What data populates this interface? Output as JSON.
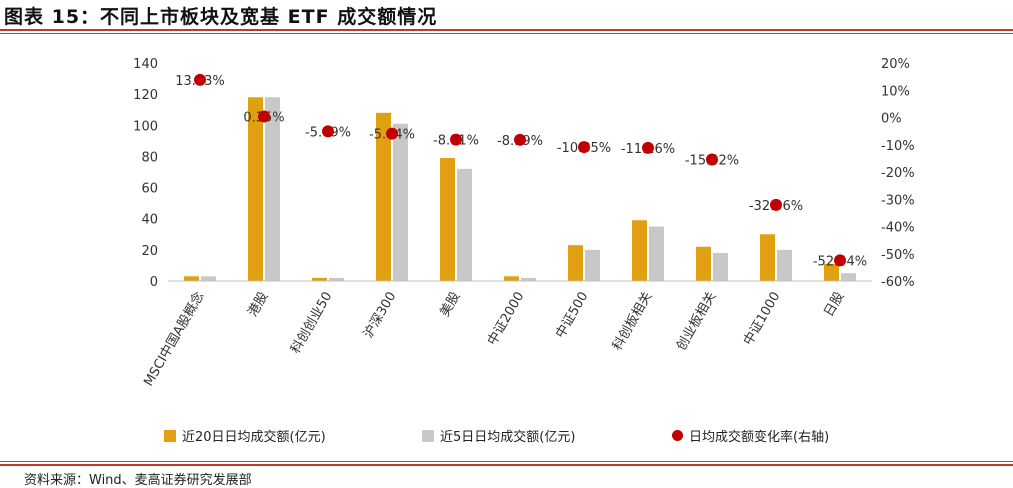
{
  "header": {
    "title": "图表 15：不同上市板块及宽基 ETF 成交额情况"
  },
  "footer": {
    "source": "资料来源：Wind、麦高证券研究发展部"
  },
  "colors": {
    "bar20": "#E0A010",
    "bar5": "#C8C8C8",
    "dot": "#C00000",
    "rule": "#C0392B"
  },
  "legend": {
    "bar20": "近20日日均成交额(亿元)",
    "bar5": "近5日日均成交额(亿元)",
    "rate": "日均成交额变化率(右轴)"
  },
  "chart_data": {
    "type": "bar",
    "categories": [
      "MSCI中国A股概念",
      "港股",
      "科创创业50",
      "沪深300",
      "美股",
      "中证2000",
      "中证500",
      "科创板相关",
      "创业板相关",
      "中证1000",
      "日股"
    ],
    "series": [
      {
        "name": "近20日日均成交额(亿元)",
        "type": "bar",
        "axis": "left",
        "values": [
          3,
          118,
          2,
          108,
          79,
          3,
          23,
          39,
          22,
          30,
          11
        ]
      },
      {
        "name": "近5日日均成交额(亿元)",
        "type": "bar",
        "axis": "left",
        "values": [
          3,
          118,
          2,
          101,
          72,
          2,
          20,
          35,
          18,
          20,
          5
        ]
      },
      {
        "name": "日均成交额变化率(右轴)",
        "type": "scatter",
        "axis": "right",
        "values": [
          13.83,
          0.35,
          -5.09,
          -5.94,
          -8.11,
          -8.19,
          -10.85,
          -11.16,
          -15.42,
          -32.06,
          -52.44
        ],
        "labels": [
          "13.83%",
          "0.35%",
          "-5.09%",
          "-5.94%",
          "-8.11%",
          "-8.19%",
          "-10.85%",
          "-11.16%",
          "-15.42%",
          "-32.06%",
          "-52.44%"
        ]
      }
    ],
    "y_left": {
      "ticks": [
        0,
        20,
        40,
        60,
        80,
        100,
        120,
        140
      ],
      "ylim": [
        0,
        140
      ]
    },
    "y_right": {
      "ticks": [
        "-60%",
        "-50%",
        "-40%",
        "-30%",
        "-20%",
        "-10%",
        "0%",
        "10%",
        "20%"
      ],
      "tick_values": [
        -60,
        -50,
        -40,
        -30,
        -20,
        -10,
        0,
        10,
        20
      ],
      "ylim": [
        -60,
        20
      ]
    },
    "legend_position": "bottom"
  }
}
